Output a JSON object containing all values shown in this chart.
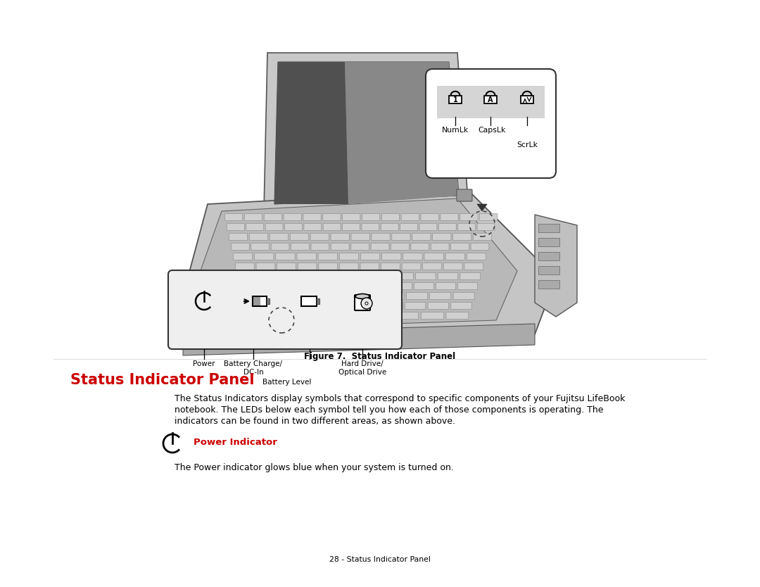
{
  "bg_color": "#ffffff",
  "figure_caption": "Figure 7.  Status Indicator Panel",
  "section_title": "Status Indicator Panel",
  "section_title_color": "#cc0000",
  "body_text_line1": "The Status Indicators display symbols that correspond to specific components of your Fujitsu LifeBook",
  "body_text_line2": "notebook. The LEDs below each symbol tell you how each of those components is operating. The",
  "body_text_line3": "indicators can be found in two different areas, as shown above.",
  "power_indicator_label": "Power Indicator",
  "power_indicator_color": "#cc0000",
  "power_text": "The Power indicator glows blue when your system is turned on.",
  "footer_text": "28 - Status Indicator Panel",
  "bottom_panel_labels": [
    "Power",
    "Battery Charge/\nDC-In",
    "Battery Level",
    "Hard Drive/\nOptical Drive"
  ],
  "top_panel_labels": [
    "NumLk",
    "CapsLk",
    "ScrLk"
  ],
  "text_color": "#000000",
  "line_color": "#333333"
}
